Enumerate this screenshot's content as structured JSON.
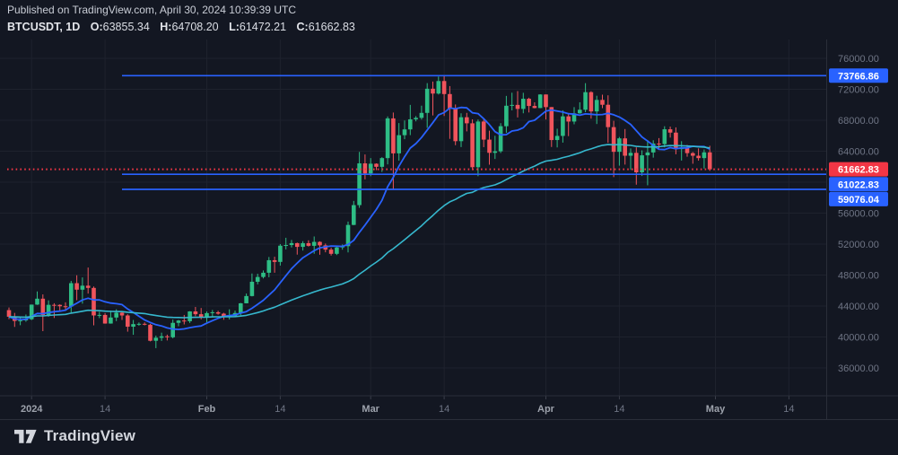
{
  "header": {
    "published_line": "Published on TradingView.com, April 30, 2024 10:39:39 UTC",
    "symbol_interval": "BTCUSDT, 1D",
    "ohlc": {
      "o_label": "O:",
      "o_value": "63855.34",
      "h_label": "H:",
      "h_value": "64708.20",
      "l_label": "L:",
      "l_value": "61472.21",
      "c_label": "C:",
      "c_value": "61662.83"
    }
  },
  "footer": {
    "brand": "TradingView"
  },
  "colors": {
    "background": "#131722",
    "up": "#2EBD85",
    "down": "#F0545C",
    "accent_blue": "#2962FF",
    "accent_cyan": "#36B8CE",
    "last_price_red": "#F23645",
    "grid": "#1E222D",
    "border": "#2A2E39",
    "tick_mark": "#3A3E4A",
    "axis_text": "#6F7585",
    "axis_text_major": "#9DA2AC",
    "badge_text": "#FFFFFF"
  },
  "chart_data": {
    "type": "candlestick",
    "symbol": "BTCUSDT",
    "interval": "1D",
    "start_date": "2023-12-28",
    "end_date": "2024-04-30",
    "ylim": [
      32400,
      78440
    ],
    "grid": true,
    "ohlc": [
      [
        43468,
        43804,
        42300,
        42613
      ],
      [
        42613,
        43111,
        41300,
        42074
      ],
      [
        42074,
        42612,
        41520,
        42140
      ],
      [
        42140,
        42899,
        41965,
        42283
      ],
      [
        42283,
        44184,
        42180,
        44179
      ],
      [
        44179,
        45879,
        44148,
        44946
      ],
      [
        44946,
        45500,
        40750,
        42845
      ],
      [
        42845,
        44729,
        42613,
        44151
      ],
      [
        44151,
        44357,
        42450,
        44145
      ],
      [
        44145,
        44215,
        43388,
        43968
      ],
      [
        43968,
        44480,
        43572,
        43929
      ],
      [
        43929,
        47248,
        43175,
        46951
      ],
      [
        46951,
        47972,
        44748,
        46110
      ],
      [
        46110,
        47695,
        44300,
        46627
      ],
      [
        46627,
        48969,
        45606,
        46339
      ],
      [
        46339,
        46515,
        41500,
        42782
      ],
      [
        42782,
        43257,
        42436,
        42847
      ],
      [
        42847,
        43079,
        41720,
        41732
      ],
      [
        41732,
        43400,
        41718,
        42511
      ],
      [
        42511,
        43578,
        42050,
        43137
      ],
      [
        43137,
        43198,
        42200,
        42776
      ],
      [
        42776,
        42930,
        40683,
        41327
      ],
      [
        41327,
        42196,
        40280,
        41659
      ],
      [
        41659,
        41872,
        41456,
        41696
      ],
      [
        41696,
        41881,
        41500,
        41580
      ],
      [
        41580,
        41689,
        39431,
        39507
      ],
      [
        39507,
        40176,
        38555,
        39897
      ],
      [
        39897,
        40555,
        39484,
        40084
      ],
      [
        40084,
        40300,
        39550,
        39961
      ],
      [
        39961,
        42246,
        39822,
        41823
      ],
      [
        41823,
        42200,
        41394,
        42120
      ],
      [
        42120,
        42842,
        41620,
        42031
      ],
      [
        42031,
        43333,
        41804,
        43302
      ],
      [
        43302,
        43882,
        42683,
        42941
      ],
      [
        42941,
        43745,
        42276,
        42580
      ],
      [
        42580,
        43285,
        41884,
        43082
      ],
      [
        43082,
        43488,
        42546,
        43194
      ],
      [
        43194,
        43379,
        42880,
        43011
      ],
      [
        43011,
        43119,
        42222,
        42582
      ],
      [
        42582,
        43569,
        42258,
        42708
      ],
      [
        42708,
        43399,
        42574,
        43098
      ],
      [
        43098,
        44396,
        42788,
        44349
      ],
      [
        44349,
        45614,
        44337,
        45288
      ],
      [
        45288,
        48200,
        45242,
        47132
      ],
      [
        47132,
        48170,
        46800,
        47751
      ],
      [
        47751,
        48592,
        47557,
        48299
      ],
      [
        48299,
        50334,
        47710,
        49917
      ],
      [
        49917,
        50368,
        48300,
        49699
      ],
      [
        49699,
        52000,
        49225,
        51795
      ],
      [
        51795,
        52816,
        51312,
        51880
      ],
      [
        51880,
        52537,
        51563,
        52124
      ],
      [
        52124,
        52191,
        50640,
        51642
      ],
      [
        51642,
        52377,
        51168,
        52122
      ],
      [
        52122,
        52488,
        51677,
        51779
      ],
      [
        51779,
        52985,
        50750,
        52284
      ],
      [
        52284,
        52366,
        50625,
        51839
      ],
      [
        51839,
        52069,
        50940,
        51288
      ],
      [
        51288,
        51542,
        50521,
        50744
      ],
      [
        50744,
        51688,
        50585,
        51568
      ],
      [
        51568,
        51955,
        51278,
        51733
      ],
      [
        51733,
        54910,
        50931,
        54476
      ],
      [
        54476,
        57580,
        54450,
        57037
      ],
      [
        57037,
        63913,
        56691,
        62432
      ],
      [
        62432,
        63585,
        60365,
        61130
      ],
      [
        61130,
        63114,
        60777,
        62387
      ],
      [
        62387,
        62433,
        61561,
        61987
      ],
      [
        61987,
        63231,
        61320,
        63113
      ],
      [
        63113,
        68499,
        62300,
        68245
      ],
      [
        68245,
        69000,
        59005,
        63724
      ],
      [
        63724,
        67641,
        62779,
        66074
      ],
      [
        66074,
        67980,
        65551,
        66823
      ],
      [
        66823,
        69990,
        66082,
        68124
      ],
      [
        68124,
        68541,
        67861,
        68313
      ],
      [
        68313,
        69887,
        68094,
        68955
      ],
      [
        68955,
        72800,
        67024,
        72078
      ],
      [
        72078,
        73000,
        68620,
        71452
      ],
      [
        71452,
        73650,
        71333,
        73072
      ],
      [
        73072,
        73777,
        68555,
        71388
      ],
      [
        71388,
        72419,
        65600,
        69499
      ],
      [
        69499,
        70043,
        64780,
        65300
      ],
      [
        65300,
        68904,
        64533,
        68393
      ],
      [
        68393,
        68956,
        66565,
        67609
      ],
      [
        67609,
        68118,
        61555,
        61937
      ],
      [
        61937,
        68100,
        60775,
        67840
      ],
      [
        67840,
        68240,
        64529,
        65501
      ],
      [
        65501,
        66649,
        62260,
        63796
      ],
      [
        63796,
        65999,
        63000,
        63990
      ],
      [
        63990,
        67628,
        63772,
        67234
      ],
      [
        67234,
        71150,
        66385,
        69880
      ],
      [
        69880,
        71561,
        69280,
        69988
      ],
      [
        69988,
        71769,
        68359,
        69469
      ],
      [
        69469,
        71552,
        68903,
        70780
      ],
      [
        70780,
        70916,
        69009,
        69850
      ],
      [
        69850,
        70321,
        69540,
        69582
      ],
      [
        69582,
        71366,
        69562,
        71333
      ],
      [
        71333,
        71342,
        68110,
        69702
      ],
      [
        69702,
        69708,
        64550,
        65446
      ],
      [
        65446,
        66914,
        64493,
        65980
      ],
      [
        65980,
        69291,
        65113,
        68508
      ],
      [
        68508,
        68756,
        65952,
        67837
      ],
      [
        67837,
        69692,
        67482,
        68896
      ],
      [
        68896,
        70326,
        68845,
        69360
      ],
      [
        69360,
        72797,
        69043,
        71631
      ],
      [
        71631,
        71758,
        68210,
        69146
      ],
      [
        69146,
        71172,
        67518,
        70631
      ],
      [
        70631,
        71305,
        69567,
        70006
      ],
      [
        70006,
        71227,
        65086,
        67116
      ],
      [
        67116,
        67929,
        60660,
        63924
      ],
      [
        63924,
        65840,
        62134,
        65661
      ],
      [
        65661,
        66867,
        62274,
        63419
      ],
      [
        63419,
        64365,
        61600,
        63793
      ],
      [
        63793,
        64499,
        59678,
        61277
      ],
      [
        61277,
        64117,
        60803,
        63470
      ],
      [
        63470,
        65450,
        59600,
        63843
      ],
      [
        63843,
        65419,
        63170,
        64994
      ],
      [
        64994,
        65695,
        64200,
        64926
      ],
      [
        64926,
        67232,
        64500,
        66837
      ],
      [
        66837,
        67184,
        65765,
        66407
      ],
      [
        66407,
        67084,
        63606,
        64276
      ],
      [
        64276,
        65297,
        62794,
        64481
      ],
      [
        64481,
        64820,
        63297,
        63755
      ],
      [
        63755,
        63898,
        62383,
        63419
      ],
      [
        63419,
        64370,
        62781,
        63113
      ],
      [
        63113,
        64228,
        61765,
        63855.34
      ],
      [
        63855.34,
        64708.2,
        61472.21,
        61662.83
      ]
    ],
    "overlays": [
      {
        "name": "ma-fast",
        "kind": "sma",
        "period": 10,
        "color": "#2962FF"
      },
      {
        "name": "ma-slow",
        "kind": "ema",
        "period": 50,
        "color": "#36B8CE"
      }
    ],
    "horizontal_lines": [
      {
        "label": "73766.86",
        "price": 73766.86,
        "color": "#2962FF",
        "style": "solid",
        "start_day_index": 20,
        "role": "drawn-level"
      },
      {
        "label": "61662.83",
        "price": 61662.83,
        "color": "#F23645",
        "style": "dotted",
        "start_day_index": 0,
        "role": "last-price"
      },
      {
        "label": "61022.83",
        "price": 61022.83,
        "color": "#2962FF",
        "style": "solid",
        "start_day_index": 20,
        "role": "drawn-level"
      },
      {
        "label": "59076.04",
        "price": 59076.04,
        "color": "#2962FF",
        "style": "solid",
        "start_day_index": 20,
        "role": "drawn-level"
      }
    ],
    "y_ticks": [
      {
        "price": 76000,
        "label": "76000.00"
      },
      {
        "price": 72000,
        "label": "72000.00"
      },
      {
        "price": 68000,
        "label": "68000.00"
      },
      {
        "price": 64000,
        "label": "64000.00"
      },
      {
        "price": 60000,
        "label": "60000.00"
      },
      {
        "price": 56000,
        "label": "56000.00"
      },
      {
        "price": 52000,
        "label": "52000.00"
      },
      {
        "price": 48000,
        "label": "48000.00"
      },
      {
        "price": 44000,
        "label": "44000.00"
      },
      {
        "price": 40000,
        "label": "40000.00"
      },
      {
        "price": 36000,
        "label": "36000.00"
      }
    ],
    "x_ticks": [
      {
        "day_index": 4,
        "label": "2024",
        "major": true
      },
      {
        "day_index": 17,
        "label": "14",
        "major": false
      },
      {
        "day_index": 35,
        "label": "Feb",
        "major": true
      },
      {
        "day_index": 48,
        "label": "14",
        "major": false
      },
      {
        "day_index": 64,
        "label": "Mar",
        "major": true
      },
      {
        "day_index": 77,
        "label": "14",
        "major": false
      },
      {
        "day_index": 95,
        "label": "Apr",
        "major": true
      },
      {
        "day_index": 108,
        "label": "14",
        "major": false
      },
      {
        "day_index": 125,
        "label": "May",
        "major": true
      },
      {
        "day_index": 138,
        "label": "14",
        "major": false
      }
    ]
  }
}
